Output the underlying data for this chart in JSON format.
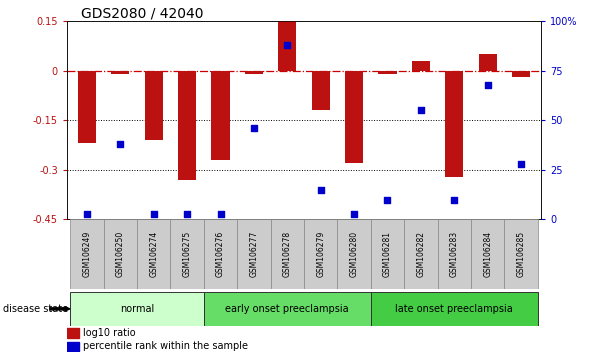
{
  "title": "GDS2080 / 42040",
  "samples": [
    "GSM106249",
    "GSM106250",
    "GSM106274",
    "GSM106275",
    "GSM106276",
    "GSM106277",
    "GSM106278",
    "GSM106279",
    "GSM106280",
    "GSM106281",
    "GSM106282",
    "GSM106283",
    "GSM106284",
    "GSM106285"
  ],
  "log10_ratio": [
    -0.22,
    -0.01,
    -0.21,
    -0.33,
    -0.27,
    -0.01,
    0.15,
    -0.12,
    -0.28,
    -0.01,
    0.03,
    -0.32,
    0.05,
    -0.02
  ],
  "percentile_rank": [
    3,
    38,
    3,
    3,
    3,
    46,
    88,
    15,
    3,
    10,
    55,
    10,
    68,
    28
  ],
  "ylim_left": [
    -0.45,
    0.15
  ],
  "ylim_right": [
    0,
    100
  ],
  "yticks_left": [
    0.15,
    0,
    -0.15,
    -0.3,
    -0.45
  ],
  "yticks_right": [
    100,
    75,
    50,
    25,
    0
  ],
  "bar_color": "#bb1111",
  "dot_color": "#0000cc",
  "zero_line_color": "#cc0000",
  "dotted_line_color": "#000000",
  "groups": [
    {
      "label": "normal",
      "start": 0,
      "end": 3,
      "color": "#ccffcc"
    },
    {
      "label": "early onset preeclampsia",
      "start": 4,
      "end": 8,
      "color": "#66dd66"
    },
    {
      "label": "late onset preeclampsia",
      "start": 9,
      "end": 13,
      "color": "#44cc44"
    }
  ],
  "disease_state_label": "disease state",
  "legend_bar_label": "log10 ratio",
  "legend_dot_label": "percentile rank within the sample",
  "title_fontsize": 10,
  "tick_fontsize": 7,
  "sample_fontsize": 5.5,
  "group_fontsize": 7
}
